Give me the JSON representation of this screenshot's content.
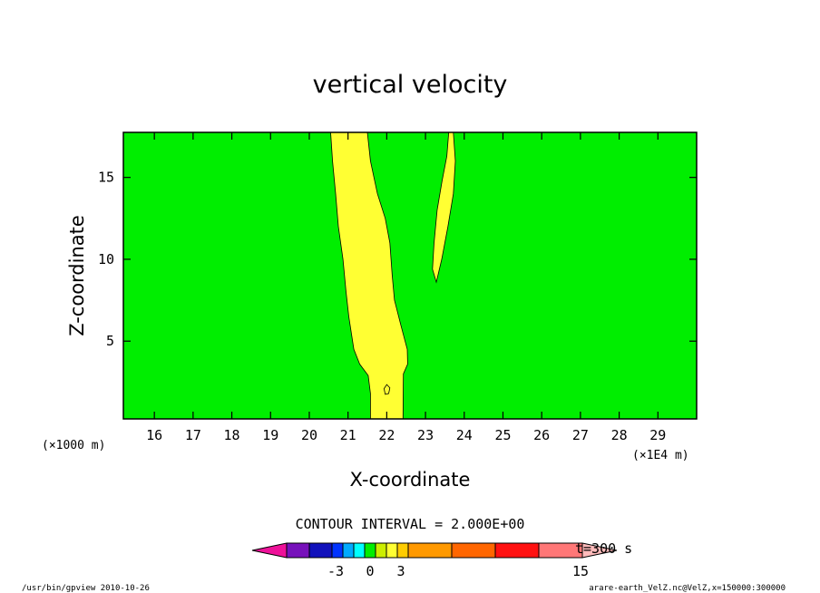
{
  "chart_data": {
    "type": "contour",
    "title": "vertical velocity",
    "xlabel": "X-coordinate",
    "ylabel": "Z-coordinate",
    "x_unit": "(×1E4 m)",
    "y_unit": "(×1000 m)",
    "xlim": [
      15.2,
      30.0
    ],
    "ylim": [
      0.25,
      17.75
    ],
    "x_ticks": [
      16,
      17,
      18,
      19,
      20,
      21,
      22,
      23,
      24,
      25,
      26,
      27,
      28,
      29
    ],
    "y_ticks": [
      5,
      10,
      15
    ],
    "background_level_color": "#00ee00",
    "contour_interval": "CONTOUR INTERVAL = 2.000E+00",
    "time_label": "t=300 s",
    "regions": [
      {
        "name": "main updraft",
        "color": "#ffff33",
        "outline_xy": [
          [
            20.55,
            17.75
          ],
          [
            21.5,
            17.75
          ],
          [
            21.58,
            16
          ],
          [
            21.76,
            14
          ],
          [
            21.96,
            12.5
          ],
          [
            22.08,
            11
          ],
          [
            22.14,
            9
          ],
          [
            22.2,
            7.5
          ],
          [
            22.36,
            6
          ],
          [
            22.53,
            4.5
          ],
          [
            22.54,
            3.6
          ],
          [
            22.43,
            3
          ],
          [
            22.42,
            0.25
          ],
          [
            21.58,
            0.25
          ],
          [
            21.58,
            1.8
          ],
          [
            21.52,
            2.9
          ],
          [
            21.3,
            3.6
          ],
          [
            21.15,
            4.5
          ],
          [
            21.02,
            6.5
          ],
          [
            20.95,
            8
          ],
          [
            20.87,
            10
          ],
          [
            20.75,
            12
          ],
          [
            20.68,
            14
          ],
          [
            20.6,
            16
          ]
        ]
      },
      {
        "name": "secondary updraft",
        "color": "#ffff33",
        "outline_xy": [
          [
            23.6,
            17.75
          ],
          [
            23.72,
            17.75
          ],
          [
            23.77,
            16
          ],
          [
            23.72,
            14
          ],
          [
            23.58,
            12
          ],
          [
            23.42,
            10
          ],
          [
            23.28,
            8.6
          ],
          [
            23.18,
            9.4
          ],
          [
            23.22,
            11
          ],
          [
            23.3,
            13
          ],
          [
            23.43,
            14.8
          ],
          [
            23.55,
            16.3
          ]
        ]
      },
      {
        "name": "small cell",
        "color": "#ffff33",
        "outline_xy": [
          [
            22.0,
            2.35
          ],
          [
            22.08,
            2.15
          ],
          [
            22.05,
            1.8
          ],
          [
            21.96,
            1.75
          ],
          [
            21.93,
            2.1
          ]
        ]
      }
    ],
    "colorbar": {
      "levels": [
        -3,
        0,
        3,
        15
      ],
      "colors": [
        "#ee1199",
        "#7711bb",
        "#1111bb",
        "#0033ff",
        "#00aaff",
        "#00ffff",
        "#00ee00",
        "#ccee00",
        "#ffff33",
        "#ffcc00",
        "#ff9900",
        "#ff6600",
        "#ff1111",
        "#ff7777",
        "#ffbbbb"
      ]
    }
  },
  "footer": {
    "left": "/usr/bin/gpview   2010-10-26",
    "right": "arare-earth_VelZ.nc@VelZ,x=150000:300000"
  }
}
